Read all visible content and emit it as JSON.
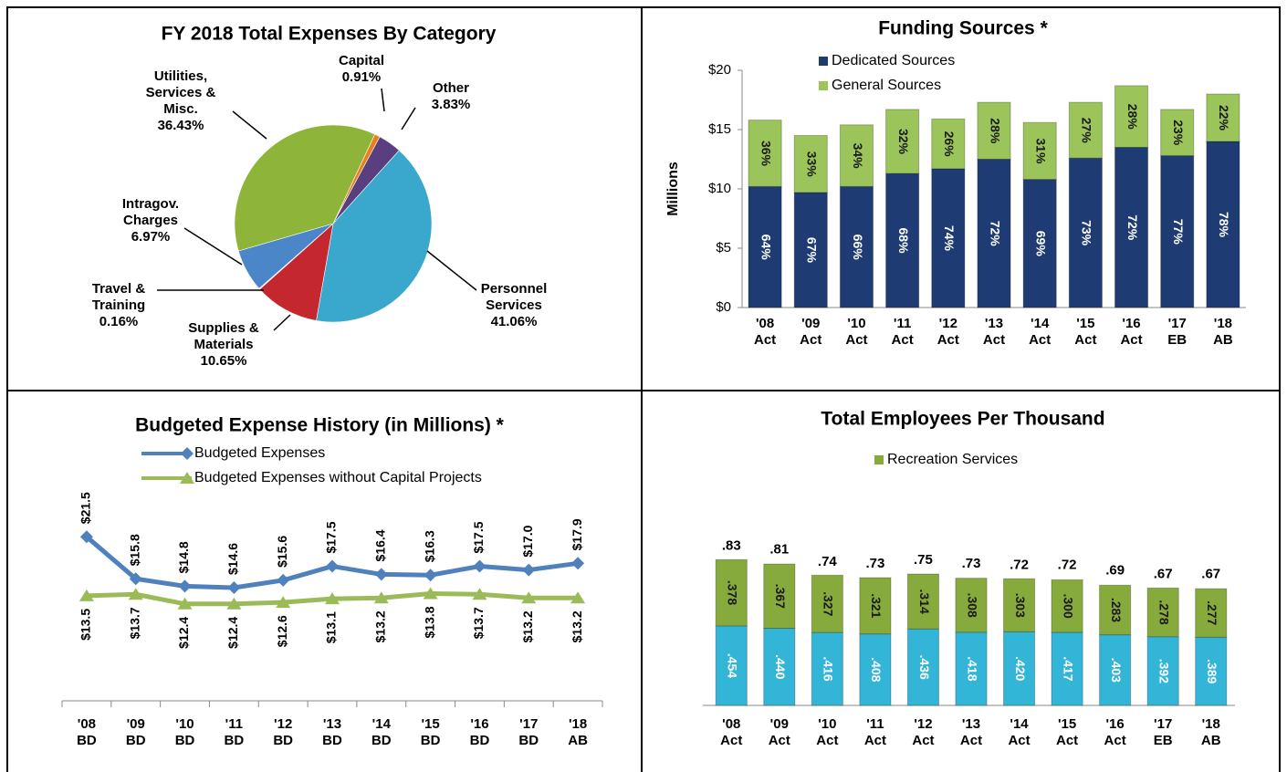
{
  "chart_data": [
    {
      "type": "pie",
      "title": "FY 2018 Total Expenses By Category",
      "categories": [
        "Capital",
        "Other",
        "Personnel Services",
        "Supplies & Materials",
        "Travel & Training",
        "Intragov. Charges",
        "Utilities, Services & Misc."
      ],
      "values": [
        0.91,
        3.83,
        41.06,
        10.65,
        0.16,
        6.97,
        36.43
      ],
      "value_labels": [
        "0.91%",
        "3.83%",
        "41.06%",
        "10.65%",
        "0.16%",
        "6.97%",
        "36.43%"
      ],
      "colors": [
        "#e8801e",
        "#5a3f80",
        "#3aa8cc",
        "#c4282e",
        "#d9d9d9",
        "#4a86c8",
        "#8fb43a"
      ]
    },
    {
      "type": "stacked_bar",
      "title": "Funding Sources *",
      "y_label": "Millions",
      "categories": [
        "'08 Act",
        "'09 Act",
        "'10 Act",
        "'11 Act",
        "'12 Act",
        "'13 Act",
        "'14 Act",
        "'15 Act",
        "'16 Act",
        "'17 EB",
        "'18 AB"
      ],
      "series": [
        {
          "name": "Dedicated Sources",
          "color": "#1f3b73",
          "values": [
            10.2,
            9.7,
            10.2,
            11.3,
            11.7,
            12.5,
            10.8,
            12.6,
            13.5,
            12.8,
            14.0
          ],
          "share_labels": [
            "64%",
            "67%",
            "66%",
            "68%",
            "74%",
            "72%",
            "69%",
            "73%",
            "72%",
            "77%",
            "78%"
          ]
        },
        {
          "name": "General Sources",
          "color": "#9bc55a",
          "values": [
            5.6,
            4.8,
            5.2,
            5.4,
            4.2,
            4.8,
            4.8,
            4.7,
            5.2,
            3.9,
            4.0
          ],
          "share_labels": [
            "36%",
            "33%",
            "34%",
            "32%",
            "26%",
            "28%",
            "31%",
            "27%",
            "28%",
            "23%",
            "22%"
          ]
        }
      ],
      "ylim": [
        0,
        20
      ],
      "yticks": [
        {
          "value": 0,
          "label": "$0"
        },
        {
          "value": 5,
          "label": "$5"
        },
        {
          "value": 10,
          "label": "$10"
        },
        {
          "value": 15,
          "label": "$15"
        },
        {
          "value": 20,
          "label": "$20"
        }
      ],
      "legend": "top"
    },
    {
      "type": "line",
      "title": "Budgeted Expense History (in Millions) *",
      "categories": [
        "'08 BD",
        "'09 BD",
        "'10 BD",
        "'11 BD",
        "'12 BD",
        "'13 BD",
        "'14 BD",
        "'15 BD",
        "'16 BD",
        "'17 BD",
        "'18 AB"
      ],
      "series": [
        {
          "name": "Budgeted Expenses",
          "color": "#4f81bd",
          "values": [
            21.5,
            15.8,
            14.8,
            14.6,
            15.6,
            17.5,
            16.4,
            16.3,
            17.5,
            17.0,
            17.9
          ],
          "value_labels": [
            "$21.5",
            "$15.8",
            "$14.8",
            "$14.6",
            "$15.6",
            "$17.5",
            "$16.4",
            "$16.3",
            "$17.5",
            "$17.0",
            "$17.9"
          ]
        },
        {
          "name": "Budgeted Expenses without Capital Projects",
          "color": "#9bbb59",
          "values": [
            13.5,
            13.7,
            12.4,
            12.4,
            12.6,
            13.1,
            13.2,
            13.8,
            13.7,
            13.2,
            13.2
          ],
          "value_labels": [
            "$13.5",
            "$13.7",
            "$12.4",
            "$12.4",
            "$12.6",
            "$13.1",
            "$13.2",
            "$13.8",
            "$13.7",
            "$13.2",
            "$13.2"
          ]
        }
      ],
      "ylim": [
        0,
        24
      ],
      "legend": "top"
    },
    {
      "type": "stacked_bar",
      "title": "Total Employees Per Thousand",
      "categories": [
        "'08 Act",
        "'09 Act",
        "'10 Act",
        "'11 Act",
        "'12 Act",
        "'13 Act",
        "'14 Act",
        "'15 Act",
        "'16 Act",
        "'17 EB",
        "'18 AB"
      ],
      "series": [
        {
          "color": "#33b5d8",
          "values": [
            0.454,
            0.44,
            0.416,
            0.408,
            0.436,
            0.418,
            0.42,
            0.417,
            0.403,
            0.392,
            0.389
          ],
          "value_labels": [
            ".454",
            ".440",
            ".416",
            ".408",
            ".436",
            ".418",
            ".420",
            ".417",
            ".403",
            ".392",
            ".389"
          ]
        },
        {
          "name": "Recreation Services",
          "color": "#86aa3c",
          "values": [
            0.378,
            0.367,
            0.327,
            0.321,
            0.314,
            0.308,
            0.303,
            0.3,
            0.283,
            0.278,
            0.277
          ],
          "value_labels": [
            ".378",
            ".367",
            ".327",
            ".321",
            ".314",
            ".308",
            ".303",
            ".300",
            ".283",
            ".278",
            ".277"
          ]
        }
      ],
      "totals": [
        0.83,
        0.81,
        0.74,
        0.73,
        0.75,
        0.73,
        0.72,
        0.72,
        0.69,
        0.67,
        0.67
      ],
      "total_labels": [
        ".83",
        ".81",
        ".74",
        ".73",
        ".75",
        ".73",
        ".72",
        ".72",
        ".69",
        ".67",
        ".67"
      ],
      "ylim": [
        0,
        1
      ],
      "legend": "top"
    }
  ]
}
